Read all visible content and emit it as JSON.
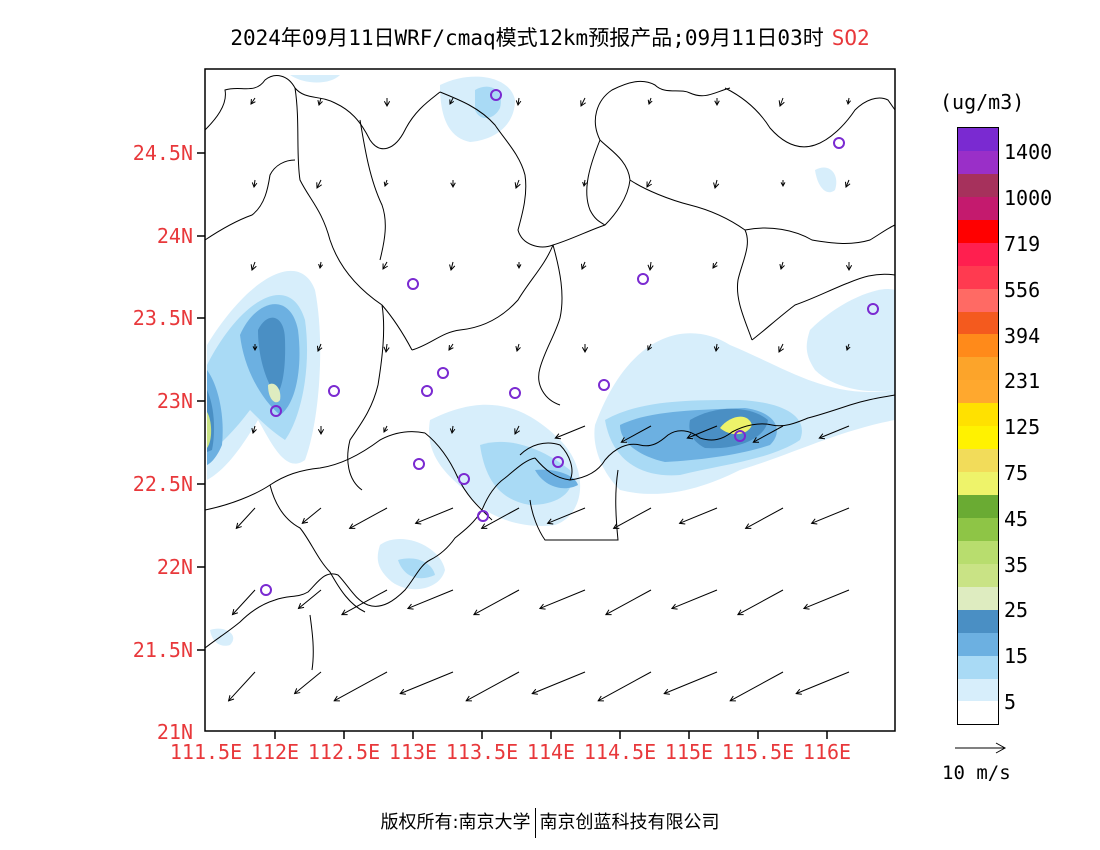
{
  "title": {
    "main": "2024年09月11日WRF/cmaq模式12km预报产品;09月11日03时",
    "species": "SO2"
  },
  "axes": {
    "lat_labels": [
      "24.5N",
      "24N",
      "23.5N",
      "23N",
      "22.5N",
      "22N",
      "21.5N",
      "21N"
    ],
    "lon_labels": [
      "111.5E",
      "112E",
      "112.5E",
      "113E",
      "113.5E",
      "114E",
      "114.5E",
      "115E",
      "115.5E",
      "116E"
    ]
  },
  "colorbar": {
    "unit": "(ug/m3)",
    "labels": [
      "1400",
      "1000",
      "719",
      "556",
      "394",
      "231",
      "125",
      "75",
      "45",
      "35",
      "25",
      "15",
      "5"
    ],
    "colors": [
      "#7a2ad1",
      "#9a2fc8",
      "#a6315c",
      "#c41a6e",
      "#ff0000",
      "#ff1f4f",
      "#ff3a50",
      "#ff6a64",
      "#f45a1e",
      "#ff8a1a",
      "#fca42a",
      "#ffa82e",
      "#ffe100",
      "#fff200",
      "#f2dc5a",
      "#eef36a",
      "#6aab33",
      "#8ec546",
      "#b8dd6e",
      "#c9e385",
      "#deecc0",
      "#4a8fc4",
      "#6cb0e1",
      "#a9daf5",
      "#d7eefb",
      "#ffffff"
    ]
  },
  "vector": {
    "label": "10 m/s"
  },
  "footer": {
    "left": "版权所有:南京大学",
    "right": "南京创蓝科技有限公司"
  }
}
